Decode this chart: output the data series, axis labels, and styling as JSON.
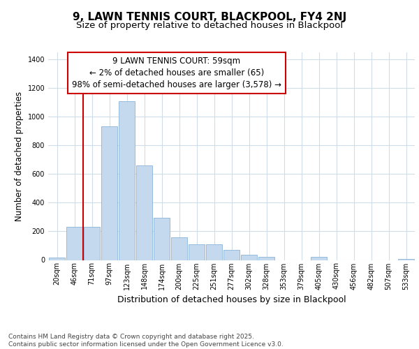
{
  "title": "9, LAWN TENNIS COURT, BLACKPOOL, FY4 2NJ",
  "subtitle": "Size of property relative to detached houses in Blackpool",
  "xlabel": "Distribution of detached houses by size in Blackpool",
  "ylabel": "Number of detached properties",
  "categories": [
    "20sqm",
    "46sqm",
    "71sqm",
    "97sqm",
    "123sqm",
    "148sqm",
    "174sqm",
    "200sqm",
    "225sqm",
    "251sqm",
    "277sqm",
    "302sqm",
    "328sqm",
    "353sqm",
    "379sqm",
    "405sqm",
    "430sqm",
    "456sqm",
    "482sqm",
    "507sqm",
    "533sqm"
  ],
  "values": [
    15,
    232,
    232,
    935,
    1110,
    660,
    295,
    160,
    108,
    108,
    70,
    38,
    20,
    0,
    0,
    20,
    0,
    0,
    0,
    0,
    8
  ],
  "bar_color": "#c5d9ee",
  "bar_edge_color": "#8ab4d8",
  "vline_x": 1.5,
  "vline_color": "#cc0000",
  "annotation_text": "9 LAWN TENNIS COURT: 59sqm\n← 2% of detached houses are smaller (65)\n98% of semi-detached houses are larger (3,578) →",
  "annotation_box_color": "#ffffff",
  "annotation_box_edge_color": "#cc0000",
  "ylim": [
    0,
    1450
  ],
  "background_color": "#ffffff",
  "plot_background": "#ffffff",
  "grid_color": "#d0dce8",
  "footer_text": "Contains HM Land Registry data © Crown copyright and database right 2025.\nContains public sector information licensed under the Open Government Licence v3.0.",
  "title_fontsize": 11,
  "subtitle_fontsize": 9.5,
  "ylabel_fontsize": 8.5,
  "xlabel_fontsize": 9,
  "tick_fontsize": 7,
  "annotation_fontsize": 8.5,
  "footer_fontsize": 6.5
}
